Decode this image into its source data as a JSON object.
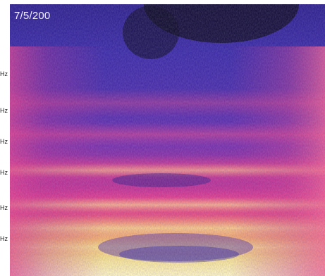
{
  "image": {
    "stamp_text": "7/5/200",
    "axis_ticks": [
      "Hz",
      "Hz",
      "Hz",
      "Hz",
      "Hz",
      "Hz"
    ],
    "palette": {
      "dark": "#0c0a1e",
      "deep_blue": "#2a1c86",
      "blue": "#3d2aa8",
      "violet": "#6a2fb0",
      "magenta": "#c02d8e",
      "pink": "#ef3f8e",
      "orange": "#f47a52",
      "yellow": "#f5e58a",
      "pale_yellow": "#fbf6c8"
    }
  }
}
